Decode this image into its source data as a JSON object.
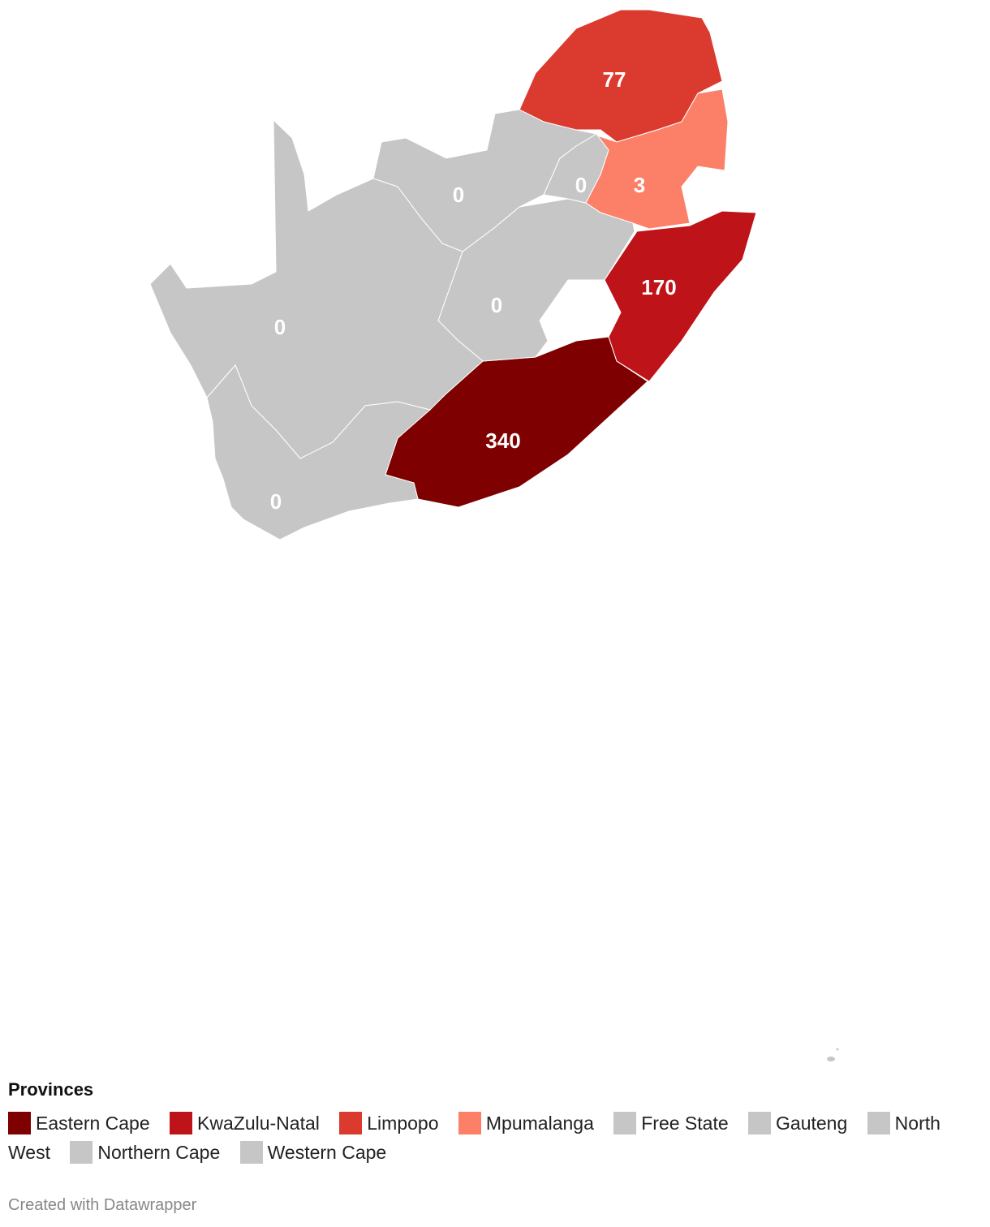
{
  "map": {
    "regions": [
      {
        "name": "Eastern Cape",
        "value": 340,
        "color": "#7f0000"
      },
      {
        "name": "KwaZulu-Natal",
        "value": 170,
        "color": "#be1319"
      },
      {
        "name": "Limpopo",
        "value": 77,
        "color": "#db3a2f"
      },
      {
        "name": "Mpumalanga",
        "value": 3,
        "color": "#fc7f68"
      },
      {
        "name": "Free State",
        "value": 0,
        "color": "#c6c6c6"
      },
      {
        "name": "Gauteng",
        "value": 0,
        "color": "#c6c6c6"
      },
      {
        "name": "North West",
        "value": 0,
        "color": "#c6c6c6"
      },
      {
        "name": "Northern Cape",
        "value": 0,
        "color": "#c6c6c6"
      },
      {
        "name": "Western Cape",
        "value": 0,
        "color": "#c6c6c6"
      }
    ]
  },
  "legend": {
    "title": "Provinces"
  },
  "footer": "Created with Datawrapper"
}
